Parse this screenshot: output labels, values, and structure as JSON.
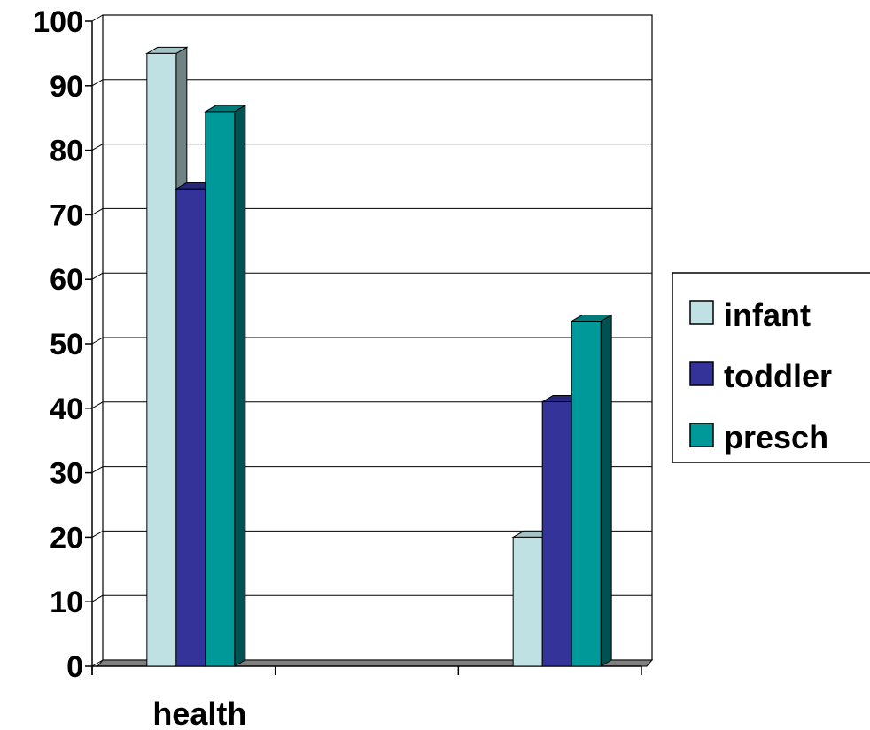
{
  "chart_data": {
    "type": "bar",
    "view": "3d-clustered-column",
    "categories": [
      "health",
      "",
      ""
    ],
    "series": [
      {
        "name": "infant",
        "values": [
          95,
          0,
          20
        ],
        "color": "#bfe1e4",
        "side_color": "#6f8284",
        "top_color": "#a3c3c6"
      },
      {
        "name": "toddler",
        "values": [
          74,
          0,
          41
        ],
        "color": "#333399",
        "side_color": "#1b1b5e",
        "top_color": "#26267a"
      },
      {
        "name": "presch",
        "values": [
          86,
          0,
          53.5
        ],
        "color": "#009999",
        "side_color": "#005252",
        "top_color": "#007a7a"
      }
    ],
    "y_ticks": [
      "0",
      "10",
      "20",
      "30",
      "40",
      "50",
      "60",
      "70",
      "80",
      "90",
      "100"
    ],
    "ylim": [
      0,
      100
    ],
    "grid": true,
    "legend_position": "right",
    "colors": {
      "gridline": "#000000",
      "floor": "#808080",
      "background": "#ffffff"
    }
  }
}
